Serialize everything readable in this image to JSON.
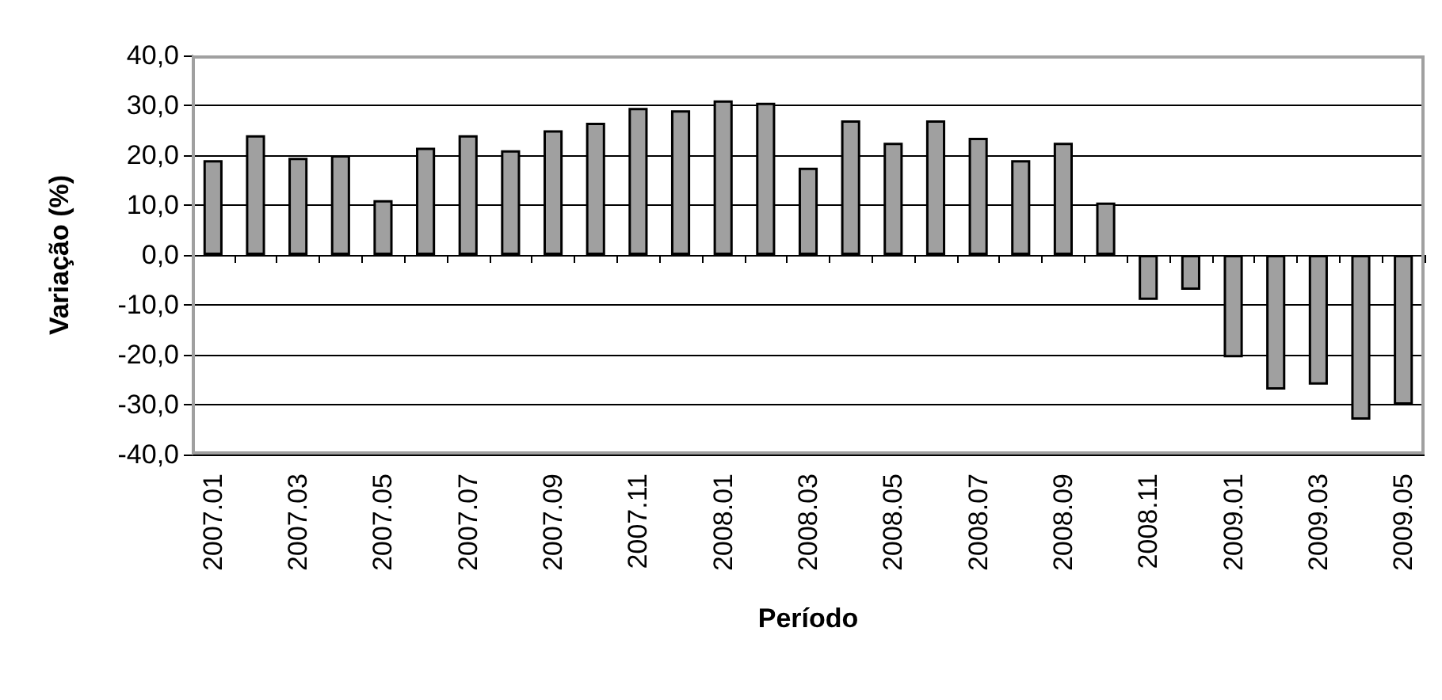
{
  "chart_data": {
    "type": "bar",
    "xlabel": "Período",
    "ylabel": "Variação (%)",
    "categories": [
      "2007.01",
      null,
      "2007.03",
      null,
      "2007.05",
      null,
      "2007.07",
      null,
      "2007.09",
      null,
      "2007.11",
      null,
      "2008.01",
      null,
      "2008.03",
      null,
      "2008.05",
      null,
      "2008.07",
      null,
      "2008.09",
      null,
      "2008.11",
      null,
      "2009.01",
      null,
      "2009.03",
      null,
      "2009.05"
    ],
    "values": [
      19,
      24,
      19.5,
      20,
      11,
      21.5,
      24,
      21,
      25,
      26.5,
      29.5,
      29,
      31,
      30.5,
      17.5,
      27,
      22.5,
      27,
      23.5,
      19,
      22.5,
      10.5,
      -9,
      -7,
      -20.5,
      -27,
      -26,
      -33,
      -30
    ],
    "color": "#a0a0a0",
    "ylim": [
      -40,
      40
    ],
    "yticks": [
      {
        "value": -40,
        "label": "-40,0"
      },
      {
        "value": -30,
        "label": "-30,0"
      },
      {
        "value": -20,
        "label": "-20,0"
      },
      {
        "value": -10,
        "label": "-10,0"
      },
      {
        "value": 0,
        "label": "0,0"
      },
      {
        "value": 10,
        "label": "10,0"
      },
      {
        "value": 20,
        "label": "20,0"
      },
      {
        "value": 30,
        "label": "30,0"
      },
      {
        "value": 40,
        "label": "40,0"
      }
    ],
    "grid": "y"
  }
}
